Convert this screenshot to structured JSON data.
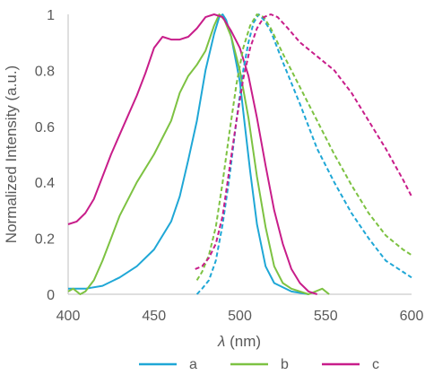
{
  "chart_data": {
    "type": "line",
    "title": "",
    "xlabel_symbol": "λ",
    "xlabel_unit": "(nm)",
    "ylabel": "Normalized Intensity (a.u.)",
    "xlim": [
      400,
      600
    ],
    "ylim": [
      0,
      1
    ],
    "x_ticks": [
      400,
      450,
      500,
      550,
      600
    ],
    "y_ticks": [
      0,
      0.2,
      0.4,
      0.6,
      0.8,
      1
    ],
    "x_tick_labels": [
      "400",
      "450",
      "500",
      "550",
      "600"
    ],
    "y_tick_labels": [
      "0",
      "0.2",
      "0.4",
      "0.6",
      "0.8",
      "1"
    ],
    "grid": false,
    "legend_position": "bottom",
    "series": [
      {
        "name": "a",
        "color": "#1FA7D6",
        "style": "solid",
        "points": [
          [
            400,
            0.02
          ],
          [
            410,
            0.02
          ],
          [
            420,
            0.03
          ],
          [
            430,
            0.06
          ],
          [
            440,
            0.1
          ],
          [
            450,
            0.16
          ],
          [
            460,
            0.26
          ],
          [
            465,
            0.35
          ],
          [
            470,
            0.48
          ],
          [
            475,
            0.62
          ],
          [
            480,
            0.8
          ],
          [
            485,
            0.93
          ],
          [
            488,
            0.99
          ],
          [
            490,
            1.0
          ],
          [
            492,
            0.98
          ],
          [
            495,
            0.92
          ],
          [
            500,
            0.76
          ],
          [
            503,
            0.6
          ],
          [
            506,
            0.44
          ],
          [
            510,
            0.25
          ],
          [
            515,
            0.1
          ],
          [
            520,
            0.04
          ],
          [
            530,
            0.01
          ],
          [
            540,
            0.0
          ]
        ]
      },
      {
        "name": "b",
        "color": "#7DC242",
        "style": "solid",
        "points": [
          [
            400,
            0.01
          ],
          [
            403,
            0.02
          ],
          [
            407,
            0.0
          ],
          [
            410,
            0.01
          ],
          [
            415,
            0.05
          ],
          [
            420,
            0.12
          ],
          [
            425,
            0.2
          ],
          [
            430,
            0.28
          ],
          [
            440,
            0.4
          ],
          [
            450,
            0.5
          ],
          [
            460,
            0.62
          ],
          [
            465,
            0.72
          ],
          [
            470,
            0.78
          ],
          [
            475,
            0.82
          ],
          [
            480,
            0.87
          ],
          [
            485,
            0.96
          ],
          [
            488,
            1.0
          ],
          [
            491,
            0.98
          ],
          [
            495,
            0.92
          ],
          [
            500,
            0.8
          ],
          [
            505,
            0.63
          ],
          [
            510,
            0.42
          ],
          [
            515,
            0.24
          ],
          [
            520,
            0.1
          ],
          [
            525,
            0.04
          ],
          [
            530,
            0.02
          ],
          [
            540,
            0.0
          ],
          [
            548,
            0.02
          ],
          [
            552,
            0.0
          ]
        ]
      },
      {
        "name": "c",
        "color": "#C81D8A",
        "style": "solid",
        "points": [
          [
            400,
            0.25
          ],
          [
            405,
            0.26
          ],
          [
            410,
            0.29
          ],
          [
            415,
            0.34
          ],
          [
            420,
            0.42
          ],
          [
            425,
            0.5
          ],
          [
            430,
            0.57
          ],
          [
            435,
            0.64
          ],
          [
            440,
            0.71
          ],
          [
            445,
            0.79
          ],
          [
            450,
            0.88
          ],
          [
            455,
            0.92
          ],
          [
            460,
            0.91
          ],
          [
            465,
            0.91
          ],
          [
            470,
            0.92
          ],
          [
            475,
            0.95
          ],
          [
            480,
            0.99
          ],
          [
            485,
            1.0
          ],
          [
            490,
            0.99
          ],
          [
            495,
            0.94
          ],
          [
            500,
            0.88
          ],
          [
            505,
            0.78
          ],
          [
            510,
            0.63
          ],
          [
            515,
            0.46
          ],
          [
            520,
            0.3
          ],
          [
            525,
            0.18
          ],
          [
            530,
            0.09
          ],
          [
            535,
            0.04
          ],
          [
            540,
            0.01
          ],
          [
            545,
            0.0
          ]
        ]
      },
      {
        "name": "a",
        "color": "#1FA7D6",
        "style": "dashed",
        "points": [
          [
            475,
            0.0
          ],
          [
            478,
            0.02
          ],
          [
            482,
            0.05
          ],
          [
            486,
            0.12
          ],
          [
            490,
            0.25
          ],
          [
            494,
            0.42
          ],
          [
            498,
            0.62
          ],
          [
            502,
            0.8
          ],
          [
            505,
            0.9
          ],
          [
            508,
            0.97
          ],
          [
            511,
            1.0
          ],
          [
            514,
            0.98
          ],
          [
            518,
            0.94
          ],
          [
            525,
            0.83
          ],
          [
            535,
            0.68
          ],
          [
            545,
            0.52
          ],
          [
            555,
            0.4
          ],
          [
            565,
            0.29
          ],
          [
            575,
            0.2
          ],
          [
            585,
            0.12
          ],
          [
            595,
            0.08
          ],
          [
            600,
            0.06
          ]
        ]
      },
      {
        "name": "b",
        "color": "#7DC242",
        "style": "dashed",
        "points": [
          [
            475,
            0.05
          ],
          [
            478,
            0.08
          ],
          [
            482,
            0.14
          ],
          [
            486,
            0.24
          ],
          [
            490,
            0.4
          ],
          [
            494,
            0.58
          ],
          [
            498,
            0.75
          ],
          [
            502,
            0.88
          ],
          [
            506,
            0.96
          ],
          [
            510,
            1.0
          ],
          [
            514,
            0.99
          ],
          [
            518,
            0.95
          ],
          [
            525,
            0.86
          ],
          [
            535,
            0.74
          ],
          [
            545,
            0.62
          ],
          [
            555,
            0.5
          ],
          [
            565,
            0.39
          ],
          [
            575,
            0.29
          ],
          [
            585,
            0.21
          ],
          [
            595,
            0.16
          ],
          [
            600,
            0.14
          ]
        ]
      },
      {
        "name": "c",
        "color": "#C81D8A",
        "style": "dashed",
        "points": [
          [
            474,
            0.09
          ],
          [
            478,
            0.1
          ],
          [
            482,
            0.13
          ],
          [
            486,
            0.18
          ],
          [
            490,
            0.28
          ],
          [
            494,
            0.45
          ],
          [
            498,
            0.62
          ],
          [
            502,
            0.77
          ],
          [
            506,
            0.88
          ],
          [
            510,
            0.95
          ],
          [
            514,
            0.99
          ],
          [
            518,
            1.0
          ],
          [
            522,
            0.99
          ],
          [
            528,
            0.95
          ],
          [
            535,
            0.9
          ],
          [
            545,
            0.85
          ],
          [
            555,
            0.8
          ],
          [
            565,
            0.72
          ],
          [
            575,
            0.62
          ],
          [
            585,
            0.52
          ],
          [
            595,
            0.41
          ],
          [
            600,
            0.35
          ]
        ]
      }
    ],
    "legend": [
      {
        "name": "a",
        "color": "#1FA7D6"
      },
      {
        "name": "b",
        "color": "#7DC242"
      },
      {
        "name": "c",
        "color": "#C81D8A"
      }
    ]
  }
}
